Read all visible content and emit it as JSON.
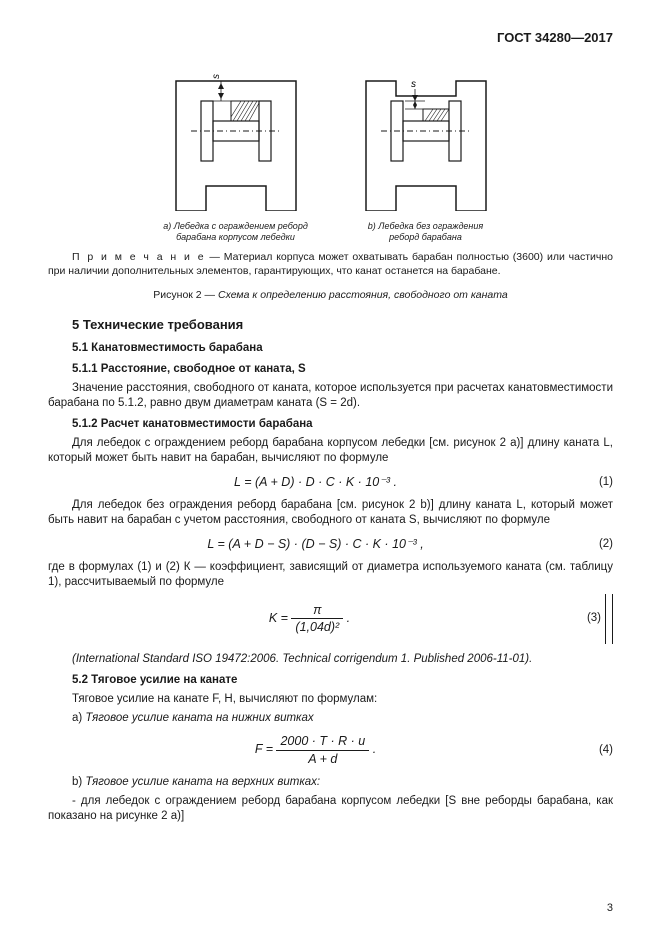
{
  "header": "ГОСТ 34280—2017",
  "fig_a": {
    "caption": "a) Лебедка с ограждением реборд\nбарабана корпусом лебедки",
    "label_s": "s",
    "stroke": "#1a1a1a",
    "hatch": "#1a1a1a",
    "bg": "#ffffff"
  },
  "fig_b": {
    "caption": "b) Лебедка без ограждения\nреборд барабана",
    "label_s": "s",
    "stroke": "#1a1a1a",
    "hatch": "#1a1a1a",
    "bg": "#ffffff"
  },
  "note_label": "П р и м е ч а н и е",
  "note_text": "— Материал корпуса может охватывать барабан полностью (3600) или частично при наличии дополнительных элементов, гарантирующих, что канат останется на барабане.",
  "fig_title_prefix": "Рисунок 2 — ",
  "fig_title_italic": "Схема к определению расстояния, свободного от каната",
  "sec5": "5 Технические требования",
  "sec51": "5.1 Канатовместимость барабана",
  "sec511": "5.1.1 Расстояние, свободное от каната, S",
  "p511": "Значение расстояния, свободного от каната, которое используется при расчетах канатовместимости барабана по 5.1.2, равно двум диаметрам каната (S = 2d).",
  "sec512": "5.1.2 Расчет канатовместимости барабана",
  "p512a": "Для лебедок с ограждением реборд барабана корпусом лебедки [см. рисунок 2 а)] длину каната L, который может быть навит на барабан, вычисляют по формуле",
  "eq1": "L = (A + D) · D · C · K · 10⁻³ .",
  "eq1_num": "(1)",
  "p512b": "Для лебедок без ограждения реборд барабана [см. рисунок 2 b)] длину каната L, который может быть навит на барабан с учетом расстояния, свободного от каната S, вычисляют по формуле",
  "eq2": "L = (A + D − S) · (D − S) · C · K · 10⁻³ ,",
  "eq2_num": "(2)",
  "where": "где в формулах (1) и (2) К — коэффициент, зависящий от диаметра используемого каната (см. таблицу 1), рассчитываемый по формуле",
  "eq3_top": "π",
  "eq3_bot": "(1,04d)²",
  "eq3_lhs": "K = ",
  "eq3_tail": " .",
  "eq3_num": "(3)",
  "iso_ref": "(International Standard ISO 19472:2006. Technical corrigendum 1. Published 2006-11-01).",
  "sec52": "5.2 Тяговое усилие на канате",
  "p52a": "Тяговое усилие на канате F, Н, вычисляют по формулам:",
  "p52b": "a) Тяговое усилие каната на нижних витках",
  "eq4_lhs": "F = ",
  "eq4_top": "2000 · T · R · u",
  "eq4_bot": "A + d",
  "eq4_tail": " .",
  "eq4_num": "(4)",
  "p52c": "b) Тяговое усилие каната на верхних витках:",
  "p52d": "- для лебедок с ограждением реборд барабана корпусом лебедки [S вне реборды барабана, как показано на рисунке 2 а)]",
  "page_num": "3"
}
